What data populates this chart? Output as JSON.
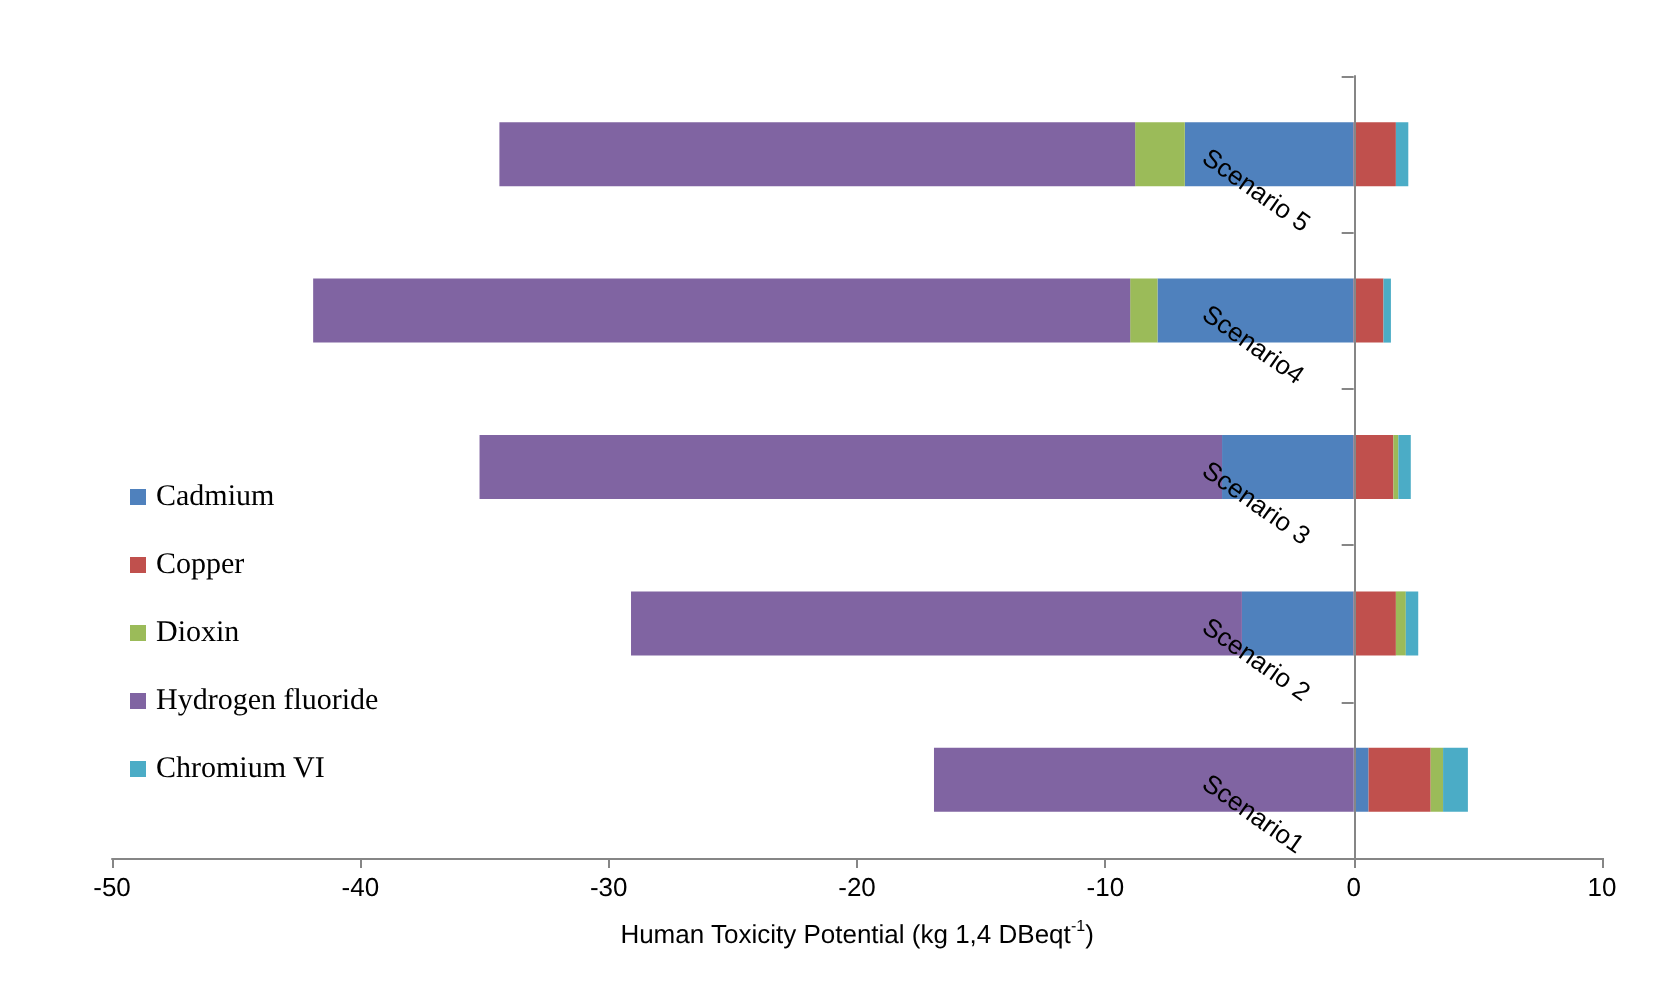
{
  "chart_data": {
    "type": "bar",
    "orientation": "horizontal",
    "stacked": true,
    "xlabel": "Human Toxicity Potential (kg 1,4 DBeqt$^{-1}$)",
    "categories": [
      "Scenario 5",
      "Scenario4",
      "Scenario 3",
      "Scenario 2",
      "Scenario1"
    ],
    "series": [
      {
        "name": "Cadmium",
        "color": "#4f81bd",
        "values": [
          -6.8,
          -7.9,
          -5.3,
          -4.5,
          0.6
        ]
      },
      {
        "name": "Copper",
        "color": "#c0504d",
        "values": [
          1.7,
          1.2,
          1.6,
          1.7,
          2.5
        ]
      },
      {
        "name": "Dioxin",
        "color": "#9bbb59",
        "values": [
          -2.0,
          -1.1,
          0.2,
          0.4,
          0.5
        ]
      },
      {
        "name": "Hydrogen fluoride",
        "color": "#8064a2",
        "values": [
          -25.6,
          -32.9,
          -29.9,
          -24.6,
          -16.9
        ]
      },
      {
        "name": "Chromium VI",
        "color": "#4bacc6",
        "values": [
          0.5,
          0.3,
          0.5,
          0.5,
          1.0
        ]
      }
    ],
    "xlim": [
      -50,
      10
    ],
    "xticks": [
      -50,
      -40,
      -30,
      -20,
      -10,
      0,
      10
    ],
    "grid": false,
    "legend": "left"
  }
}
